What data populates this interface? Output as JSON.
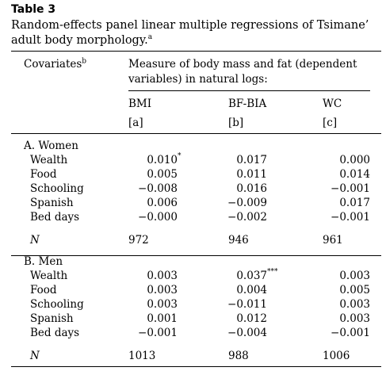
{
  "caption": {
    "label": "Table 3",
    "title": "Random-effects panel linear multiple regressions of Tsimane’ adult body morphology.",
    "title_note": "a"
  },
  "header": {
    "covariates": "Covariates",
    "covariates_note": "b",
    "measure": "Measure of body mass and fat (dependent variables) in natural logs:",
    "columns": [
      {
        "name": "BMI",
        "code": "[a]"
      },
      {
        "name": "BF-BIA",
        "code": "[b]"
      },
      {
        "name": "WC",
        "code": "[c]"
      }
    ]
  },
  "groups": [
    {
      "title": "A. Women",
      "rows": [
        {
          "label": "Wealth",
          "values": [
            "0.010",
            "0.017",
            "0.000"
          ],
          "marks": [
            "*",
            "",
            ""
          ]
        },
        {
          "label": "Food",
          "values": [
            "0.005",
            "0.011",
            "0.014"
          ],
          "marks": [
            "",
            "",
            ""
          ]
        },
        {
          "label": "Schooling",
          "values": [
            "−0.008",
            "0.016",
            "−0.001"
          ],
          "marks": [
            "",
            "",
            ""
          ]
        },
        {
          "label": "Spanish",
          "values": [
            "0.006",
            "−0.009",
            "0.017"
          ],
          "marks": [
            "",
            "",
            ""
          ]
        },
        {
          "label": "Bed days",
          "values": [
            "−0.000",
            "−0.002",
            "−0.001"
          ],
          "marks": [
            "",
            "",
            ""
          ]
        }
      ],
      "n_label": "N",
      "n_values": [
        "972",
        "946",
        "961"
      ]
    },
    {
      "title": "B. Men",
      "rows": [
        {
          "label": "Wealth",
          "values": [
            "0.003",
            "0.037",
            "0.003"
          ],
          "marks": [
            "",
            "***",
            ""
          ]
        },
        {
          "label": "Food",
          "values": [
            "0.003",
            "0.004",
            "0.005"
          ],
          "marks": [
            "",
            "",
            ""
          ]
        },
        {
          "label": "Schooling",
          "values": [
            "0.003",
            "−0.011",
            "0.003"
          ],
          "marks": [
            "",
            "",
            ""
          ]
        },
        {
          "label": "Spanish",
          "values": [
            "0.001",
            "0.012",
            "0.003"
          ],
          "marks": [
            "",
            "",
            ""
          ]
        },
        {
          "label": "Bed days",
          "values": [
            "−0.001",
            "−0.004",
            "−0.001"
          ],
          "marks": [
            "",
            "",
            ""
          ]
        }
      ],
      "n_label": "N",
      "n_values": [
        "1013",
        "988",
        "1006"
      ]
    }
  ]
}
